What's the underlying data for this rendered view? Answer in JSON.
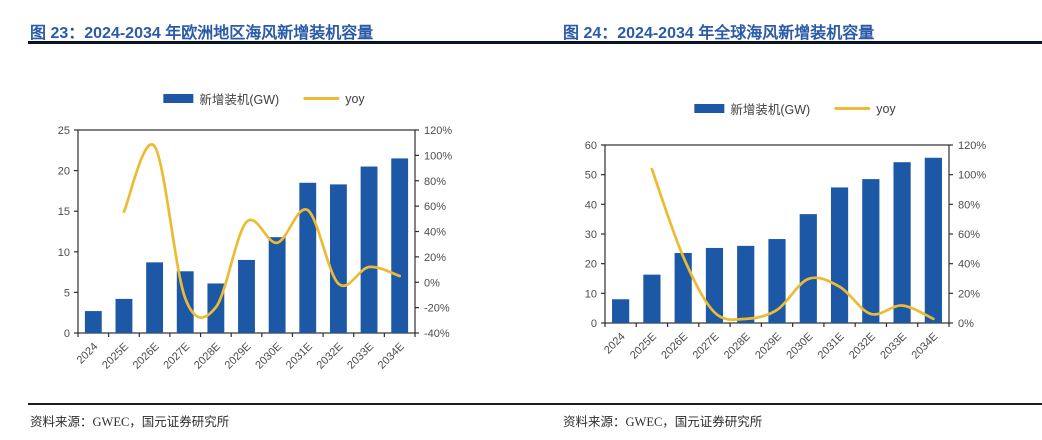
{
  "figures": [
    {
      "title": "图 23：2024-2034 年欧洲地区海风新增装机容量",
      "source": "资料来源：GWEC，国元证券研究所"
    },
    {
      "title": "图 24：2024-2034 年全球海风新增装机容量",
      "source": "资料来源：GWEC，国元证券研究所"
    }
  ],
  "chart_data": [
    {
      "type": "bar",
      "subtype": "bar-line-combo",
      "title": "图 23：2024-2034 年欧洲地区海风新增装机容量",
      "categories": [
        "2024",
        "2025E",
        "2026E",
        "2027E",
        "2028E",
        "2029E",
        "2030E",
        "2031E",
        "2032E",
        "2033E",
        "2034E"
      ],
      "series": [
        {
          "name": "新增装机(GW)",
          "type": "bar",
          "axis": "left",
          "color": "#1C58A6",
          "values": [
            2.7,
            4.2,
            8.7,
            7.6,
            6.1,
            9.0,
            11.8,
            18.5,
            18.3,
            20.5,
            21.5
          ]
        },
        {
          "name": "yoy",
          "type": "line",
          "axis": "right",
          "color": "#EDBB33",
          "unit": "%",
          "values": [
            null,
            55.6,
            107.1,
            -12.6,
            -19.7,
            47.5,
            31.1,
            56.8,
            -1.1,
            12.0,
            4.9
          ]
        }
      ],
      "left_axis": {
        "min": 0,
        "max": 25,
        "step": 5
      },
      "right_axis": {
        "min": -40,
        "max": 120,
        "step": 20,
        "format": "percent"
      },
      "legend_position": "top",
      "grid": false,
      "xlabel": "",
      "ylabel": ""
    },
    {
      "type": "bar",
      "subtype": "bar-line-combo",
      "title": "图 24：2024-2034 年全球海风新增装机容量",
      "categories": [
        "2024",
        "2025E",
        "2026E",
        "2027E",
        "2028E",
        "2029E",
        "2030E",
        "2031E",
        "2032E",
        "2033E",
        "2034E"
      ],
      "series": [
        {
          "name": "新增装机(GW)",
          "type": "bar",
          "axis": "left",
          "color": "#1C58A6",
          "values": [
            8.0,
            16.3,
            23.6,
            25.3,
            26.0,
            28.3,
            36.7,
            45.7,
            48.5,
            54.2,
            55.7
          ]
        },
        {
          "name": "yoy",
          "type": "line",
          "axis": "right",
          "color": "#EDBB33",
          "unit": "%",
          "values": [
            null,
            103.8,
            44.8,
            7.2,
            2.8,
            8.8,
            29.7,
            24.5,
            6.1,
            11.8,
            2.8
          ]
        }
      ],
      "left_axis": {
        "min": 0,
        "max": 60,
        "step": 10
      },
      "right_axis": {
        "min": 0,
        "max": 120,
        "step": 20,
        "format": "percent"
      },
      "legend_position": "top",
      "grid": false,
      "xlabel": "",
      "ylabel": ""
    }
  ]
}
